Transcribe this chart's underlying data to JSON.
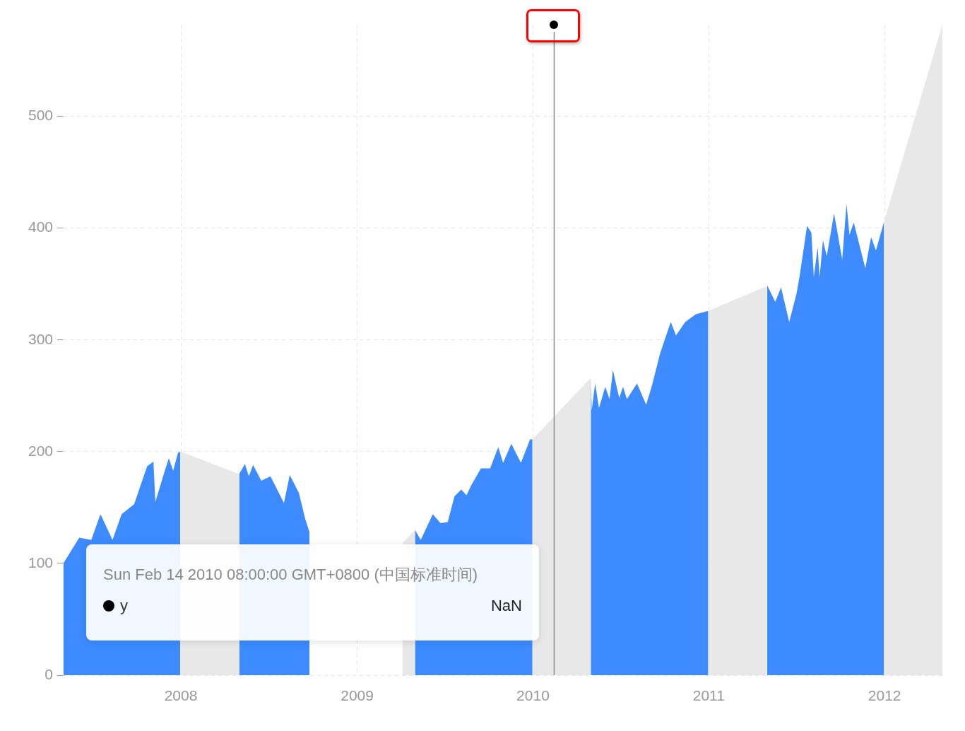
{
  "chart_data": {
    "type": "area",
    "xlim": [
      "2007-05-01",
      "2012-04-30"
    ],
    "xticks": [
      "2008",
      "2009",
      "2010",
      "2011",
      "2012"
    ],
    "ylim": [
      0,
      582
    ],
    "yticks": [
      0,
      100,
      200,
      300,
      400,
      500
    ],
    "grid": true,
    "legend": false,
    "series": [
      {
        "color": "#e8e8e8",
        "x": [
          "2007-12-31",
          "2008-05-01",
          "2008-08-01",
          "2009-04-05",
          "2009-05-01",
          "2009-08-01",
          "2009-12-31",
          "2010-05-01",
          "2010-08-01",
          "2010-12-31",
          "2011-05-01",
          "2011-08-01",
          "2011-12-31",
          "2012-04-30"
        ],
        "values": [
          200,
          180,
          null,
          118,
          130,
          null,
          211,
          266,
          null,
          326,
          348,
          null,
          406,
          582
        ]
      },
      {
        "name": "y",
        "color": "#3d8bff",
        "x": [
          "2007-05-02",
          "2007-06-04",
          "2007-06-29",
          "2007-07-18",
          "2007-08-12",
          "2007-08-31",
          "2007-09-26",
          "2007-10-23",
          "2007-11-05",
          "2007-11-09",
          "2007-11-28",
          "2007-12-07",
          "2007-12-16",
          "2007-12-26",
          "2007-12-31",
          "2008-02-15",
          "2008-05-01",
          "2008-05-13",
          "2008-05-21",
          "2008-05-30",
          "2008-06-16",
          "2008-07-05",
          "2008-08-02",
          "2008-08-14",
          "2008-09-02",
          "2008-09-15",
          "2008-09-24",
          "2008-10-10",
          "2008-10-20",
          "2008-11-20",
          "2008-12-10",
          "2008-12-31",
          "2009-02-15",
          "2009-05-01",
          "2009-05-13",
          "2009-06-07",
          "2009-06-23",
          "2009-07-08",
          "2009-07-22",
          "2009-08-05",
          "2009-08-16",
          "2009-08-26",
          "2009-09-15",
          "2009-10-04",
          "2009-10-21",
          "2009-10-31",
          "2009-11-17",
          "2009-12-07",
          "2009-12-26",
          "2009-12-31",
          "2010-02-15",
          "2010-05-01",
          "2010-05-03",
          "2010-05-10",
          "2010-05-18",
          "2010-05-31",
          "2010-06-09",
          "2010-06-16",
          "2010-06-29",
          "2010-07-07",
          "2010-07-15",
          "2010-08-05",
          "2010-08-24",
          "2010-09-05",
          "2010-09-22",
          "2010-10-14",
          "2010-10-25",
          "2010-11-13",
          "2010-12-05",
          "2010-12-31",
          "2011-02-15",
          "2011-05-02",
          "2011-05-19",
          "2011-05-31",
          "2011-06-17",
          "2011-07-02",
          "2011-07-09",
          "2011-07-24",
          "2011-08-02",
          "2011-08-07",
          "2011-08-15",
          "2011-08-19",
          "2011-08-26",
          "2011-09-03",
          "2011-09-18",
          "2011-09-22",
          "2011-10-05",
          "2011-10-14",
          "2011-10-20",
          "2011-10-29",
          "2011-11-22",
          "2011-12-04",
          "2011-12-14",
          "2011-12-31"
        ],
        "values": [
          100,
          123,
          121,
          144,
          121,
          144,
          153,
          187,
          191,
          155,
          182,
          194,
          183,
          199,
          200,
          null,
          180,
          189,
          178,
          188,
          174,
          178,
          154,
          179,
          163,
          140,
          128,
          null,
          null,
          null,
          null,
          null,
          null,
          130,
          121,
          144,
          136,
          137,
          160,
          166,
          161,
          170,
          185,
          185,
          204,
          190,
          207,
          190,
          211,
          211,
          null,
          266,
          237,
          261,
          239,
          258,
          247,
          273,
          248,
          258,
          247,
          261,
          242,
          259,
          288,
          316,
          304,
          316,
          323,
          326,
          null,
          349,
          334,
          347,
          316,
          341,
          358,
          402,
          396,
          356,
          383,
          356,
          389,
          375,
          413,
          404,
          372,
          422,
          394,
          405,
          364,
          392,
          380,
          406
        ]
      }
    ],
    "ref_lines": [
      {
        "axis": "x",
        "value": "2010-02-14",
        "color": "#888888"
      }
    ],
    "annotations": [
      "Sun Feb 14 2010 08:00:00 GMT+0800 (中国标准时间)",
      "NaN"
    ]
  }
}
